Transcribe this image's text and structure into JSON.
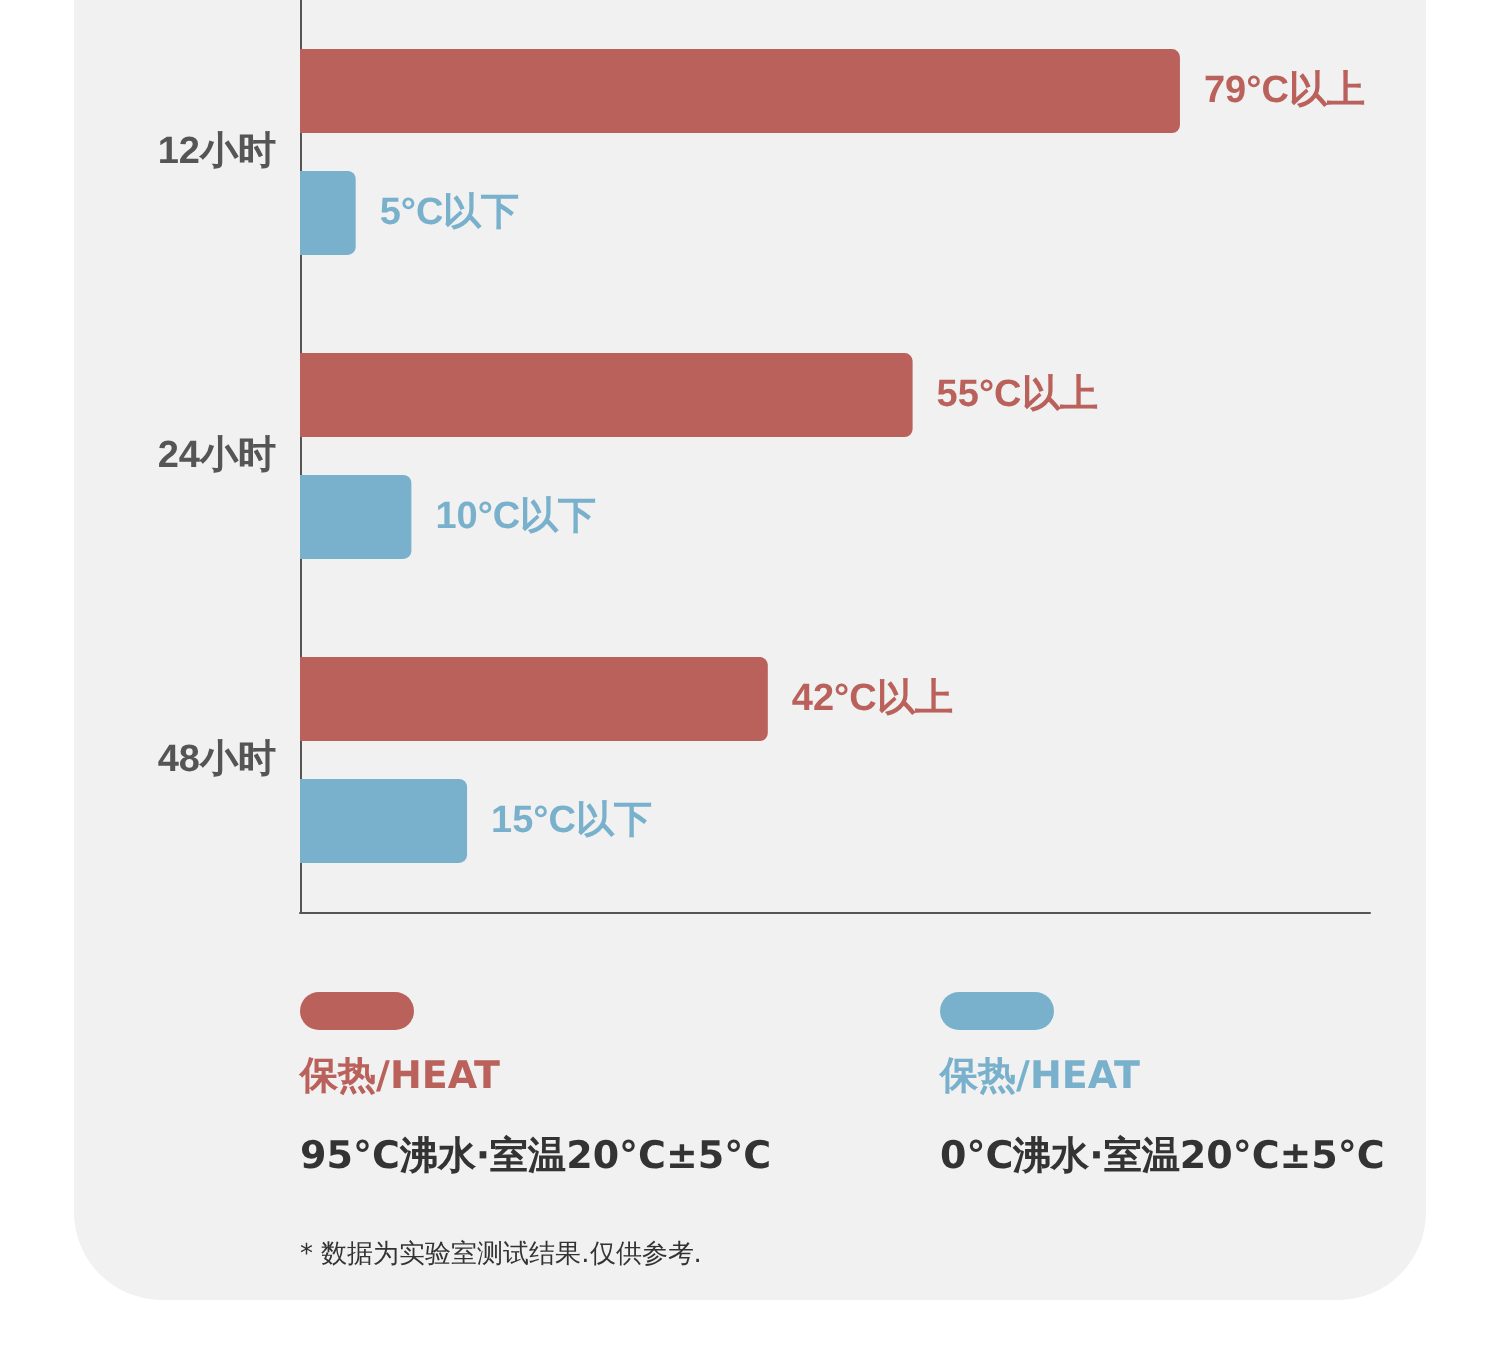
{
  "chart_data": {
    "type": "bar",
    "orientation": "horizontal",
    "categories": [
      "12小时",
      "24小时",
      "48小时"
    ],
    "series": [
      {
        "name": "保热/HEAT",
        "color": "#b9615a",
        "values": [
          79,
          55,
          42
        ],
        "value_labels": [
          "79°C以上",
          "55°C以上",
          "42°C以上"
        ]
      },
      {
        "name": "保热/HEAT",
        "color": "#79b1cd",
        "values": [
          5,
          10,
          15
        ],
        "value_labels": [
          "5°C以下",
          "10°C以下",
          "15°C以下"
        ]
      }
    ],
    "legend": "bottom",
    "grid": false,
    "annotations": [
      "95°C沸水·室温20°C±5°C",
      "0°C沸水·室温20°C±5°C",
      "* 数据为实验室测试结果.仅供参考."
    ]
  }
}
